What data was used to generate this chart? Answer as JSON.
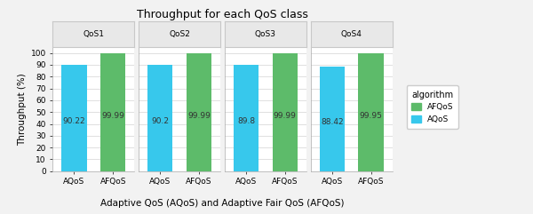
{
  "title": "Throughput for each QoS class",
  "xlabel": "Adaptive QoS (AQoS) and Adaptive Fair QoS (AFQoS)",
  "ylabel": "Throughput (%)",
  "facets": [
    "QoS1",
    "QoS2",
    "QoS3",
    "QoS4"
  ],
  "categories": [
    "AQoS",
    "AFQoS"
  ],
  "values": {
    "QoS1": [
      90.22,
      99.99
    ],
    "QoS2": [
      90.2,
      99.99
    ],
    "QoS3": [
      89.8,
      99.99
    ],
    "QoS4": [
      88.42,
      99.95
    ]
  },
  "bar_color_AQoS": "#37C8EC",
  "bar_color_AFQoS": "#5DBB6A",
  "ylim": [
    0,
    105
  ],
  "yticks": [
    0,
    10,
    20,
    30,
    40,
    50,
    60,
    70,
    80,
    90,
    100
  ],
  "legend_title": "algorithm",
  "legend_labels": [
    "AFQoS",
    "AQoS"
  ],
  "legend_colors": [
    "#5DBB6A",
    "#37C8EC"
  ],
  "panel_bg": "#F2F2F2",
  "plot_bg": "#FFFFFF",
  "facet_strip_bg": "#E8E8E8",
  "facet_strip_edge": "#C8C8C8",
  "bar_label_color": "#333333",
  "bar_label_fontsize": 6.5,
  "title_fontsize": 9,
  "axis_label_fontsize": 7.5,
  "tick_fontsize": 6.5,
  "grid_color": "#E0E0E0"
}
